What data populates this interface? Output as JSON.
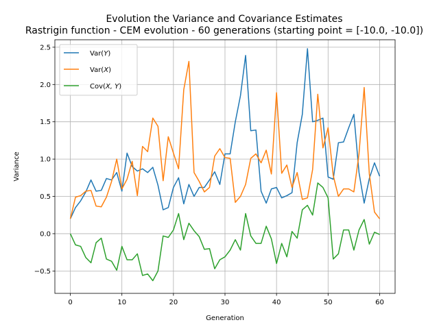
{
  "chart_data": {
    "type": "line",
    "title": "Evolution the Variance and Covariance Estimates",
    "subtitle": "Rastrigin function - CEM evolution - 60 generations (starting point = [-10.0, -10.0])",
    "xlabel": "Generation",
    "ylabel": "Variance",
    "xlim": [
      -3,
      63
    ],
    "ylim": [
      -0.8,
      2.6
    ],
    "xticks": [
      0,
      10,
      20,
      30,
      40,
      50,
      60
    ],
    "yticks": [
      -0.5,
      0.0,
      0.5,
      1.0,
      1.5,
      2.0,
      2.5
    ],
    "xtick_labels": [
      "0",
      "10",
      "20",
      "30",
      "40",
      "50",
      "60"
    ],
    "ytick_labels": [
      "−0.5",
      "0.0",
      "0.5",
      "1.0",
      "1.5",
      "2.0",
      "2.5"
    ],
    "grid": true,
    "legend_position": "top-left",
    "x": [
      0,
      1,
      2,
      3,
      4,
      5,
      6,
      7,
      8,
      9,
      10,
      11,
      12,
      13,
      14,
      15,
      16,
      17,
      18,
      19,
      20,
      21,
      22,
      23,
      24,
      25,
      26,
      27,
      28,
      29,
      30,
      31,
      32,
      33,
      34,
      35,
      36,
      37,
      38,
      39,
      40,
      41,
      42,
      43,
      44,
      45,
      46,
      47,
      48,
      49,
      50,
      51,
      52,
      53,
      54,
      55,
      56,
      57,
      58,
      59,
      60
    ],
    "series": [
      {
        "name": "Var(Y)",
        "label_main": "Var(",
        "label_var": "Y",
        "label_end": ")",
        "color": "#1f77b4",
        "values": [
          0.2,
          0.35,
          0.44,
          0.56,
          0.72,
          0.57,
          0.58,
          0.74,
          0.72,
          0.82,
          0.57,
          1.08,
          0.9,
          0.84,
          0.87,
          0.82,
          0.89,
          0.65,
          0.32,
          0.35,
          0.62,
          0.75,
          0.4,
          0.66,
          0.5,
          0.62,
          0.62,
          0.72,
          0.83,
          0.66,
          1.07,
          1.07,
          1.5,
          1.85,
          2.39,
          1.38,
          1.39,
          0.57,
          0.41,
          0.6,
          0.62,
          0.48,
          0.51,
          0.55,
          1.22,
          1.6,
          2.48,
          1.5,
          1.52,
          1.55,
          0.76,
          0.73,
          1.22,
          1.23,
          1.42,
          1.6,
          0.82,
          0.41,
          0.74,
          0.95,
          0.77
        ]
      },
      {
        "name": "Var(X)",
        "label_main": "Var(",
        "label_var": "X",
        "label_end": ")",
        "color": "#ff7f0e",
        "values": [
          0.2,
          0.49,
          0.51,
          0.57,
          0.58,
          0.37,
          0.36,
          0.49,
          0.7,
          1.0,
          0.6,
          0.73,
          0.97,
          0.51,
          1.17,
          1.1,
          1.55,
          1.44,
          0.71,
          1.3,
          1.08,
          0.87,
          1.93,
          2.31,
          0.82,
          0.7,
          0.56,
          0.62,
          1.04,
          1.14,
          1.02,
          1.01,
          0.42,
          0.5,
          0.66,
          1.01,
          1.07,
          0.95,
          1.12,
          0.8,
          1.89,
          0.81,
          0.92,
          0.62,
          0.82,
          0.46,
          0.48,
          0.86,
          1.87,
          1.15,
          1.42,
          0.78,
          0.5,
          0.6,
          0.6,
          0.56,
          1.07,
          1.96,
          0.8,
          0.29,
          0.2
        ]
      },
      {
        "name": "Cov(X, Y)",
        "label_main": "Cov(",
        "label_var": "X, Y",
        "label_end": ")",
        "color": "#2ca02c",
        "values": [
          0.0,
          -0.15,
          -0.17,
          -0.32,
          -0.39,
          -0.12,
          -0.06,
          -0.34,
          -0.37,
          -0.49,
          -0.17,
          -0.35,
          -0.35,
          -0.27,
          -0.56,
          -0.54,
          -0.63,
          -0.5,
          -0.03,
          -0.05,
          0.05,
          0.27,
          -0.08,
          0.14,
          0.04,
          -0.04,
          -0.21,
          -0.2,
          -0.47,
          -0.35,
          -0.31,
          -0.22,
          -0.08,
          -0.22,
          0.27,
          -0.03,
          -0.13,
          -0.13,
          0.1,
          -0.07,
          -0.4,
          -0.13,
          -0.31,
          0.03,
          -0.06,
          0.32,
          0.38,
          0.25,
          0.68,
          0.62,
          0.48,
          -0.34,
          -0.27,
          0.05,
          0.05,
          -0.22,
          0.05,
          0.19,
          -0.14,
          0.02,
          -0.01
        ]
      }
    ]
  }
}
